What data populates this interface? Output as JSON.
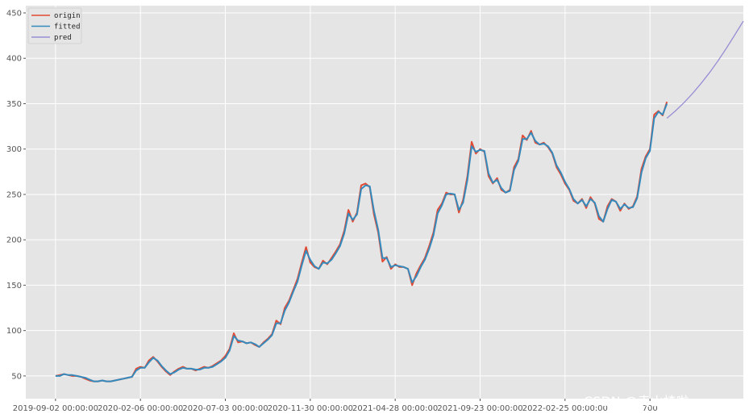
{
  "watermark": "CSDN @卖山楂啦prss",
  "colors": {
    "origin": "#e24a33",
    "fitted": "#348abd",
    "pred": "#988ed5",
    "background": "#e5e5e5",
    "grid": "#ffffff"
  },
  "chart_data": {
    "type": "line",
    "title": "",
    "xlabel": "",
    "ylabel": "",
    "grid": true,
    "legend_position": "top-left",
    "xlim": [
      -35,
      810
    ],
    "ylim": [
      25,
      458
    ],
    "x_ticks": [
      {
        "x": 0,
        "label": "2019-09-02 00:00:00"
      },
      {
        "x": 100,
        "label": "2020-02-06 00:00:00"
      },
      {
        "x": 200,
        "label": "2020-07-03 00:00:00"
      },
      {
        "x": 300,
        "label": "2020-11-30 00:00:00"
      },
      {
        "x": 400,
        "label": "2021-04-28 00:00:00"
      },
      {
        "x": 500,
        "label": "2021-09-23 00:00:00"
      },
      {
        "x": 600,
        "label": "2022-02-25 00:00:00"
      },
      {
        "x": 700,
        "label": "700"
      }
    ],
    "y_ticks": [
      50,
      100,
      150,
      200,
      250,
      300,
      350,
      400,
      450
    ],
    "series": [
      {
        "name": "origin",
        "color": "#e24a33",
        "points": [
          [
            0,
            50
          ],
          [
            5,
            51
          ],
          [
            10,
            52
          ],
          [
            15,
            51
          ],
          [
            20,
            50
          ],
          [
            25,
            50
          ],
          [
            30,
            49
          ],
          [
            35,
            47
          ],
          [
            40,
            45
          ],
          [
            45,
            44
          ],
          [
            50,
            44
          ],
          [
            55,
            45
          ],
          [
            60,
            44
          ],
          [
            65,
            44
          ],
          [
            70,
            45
          ],
          [
            75,
            46
          ],
          [
            80,
            47
          ],
          [
            85,
            48
          ],
          [
            90,
            49
          ],
          [
            95,
            58
          ],
          [
            100,
            60
          ],
          [
            105,
            59
          ],
          [
            110,
            67
          ],
          [
            115,
            71
          ],
          [
            120,
            66
          ],
          [
            125,
            60
          ],
          [
            130,
            55
          ],
          [
            135,
            51
          ],
          [
            140,
            55
          ],
          [
            145,
            58
          ],
          [
            150,
            60
          ],
          [
            155,
            58
          ],
          [
            160,
            58
          ],
          [
            165,
            56
          ],
          [
            170,
            58
          ],
          [
            175,
            60
          ],
          [
            180,
            59
          ],
          [
            185,
            61
          ],
          [
            190,
            64
          ],
          [
            195,
            67
          ],
          [
            200,
            72
          ],
          [
            205,
            80
          ],
          [
            210,
            97
          ],
          [
            215,
            87
          ],
          [
            220,
            88
          ],
          [
            225,
            86
          ],
          [
            230,
            87
          ],
          [
            235,
            84
          ],
          [
            240,
            82
          ],
          [
            245,
            87
          ],
          [
            250,
            91
          ],
          [
            255,
            96
          ],
          [
            260,
            111
          ],
          [
            265,
            107
          ],
          [
            270,
            125
          ],
          [
            275,
            133
          ],
          [
            280,
            145
          ],
          [
            285,
            157
          ],
          [
            290,
            175
          ],
          [
            295,
            192
          ],
          [
            300,
            175
          ],
          [
            305,
            170
          ],
          [
            310,
            168
          ],
          [
            315,
            177
          ],
          [
            320,
            173
          ],
          [
            325,
            180
          ],
          [
            330,
            187
          ],
          [
            335,
            195
          ],
          [
            340,
            210
          ],
          [
            345,
            233
          ],
          [
            350,
            220
          ],
          [
            355,
            230
          ],
          [
            360,
            260
          ],
          [
            365,
            262
          ],
          [
            370,
            258
          ],
          [
            375,
            228
          ],
          [
            380,
            208
          ],
          [
            385,
            176
          ],
          [
            390,
            181
          ],
          [
            395,
            168
          ],
          [
            400,
            173
          ],
          [
            405,
            170
          ],
          [
            410,
            170
          ],
          [
            415,
            168
          ],
          [
            420,
            150
          ],
          [
            425,
            163
          ],
          [
            430,
            172
          ],
          [
            435,
            180
          ],
          [
            440,
            193
          ],
          [
            445,
            208
          ],
          [
            450,
            233
          ],
          [
            455,
            240
          ],
          [
            460,
            252
          ],
          [
            465,
            250
          ],
          [
            470,
            250
          ],
          [
            475,
            230
          ],
          [
            480,
            244
          ],
          [
            485,
            270
          ],
          [
            490,
            308
          ],
          [
            495,
            295
          ],
          [
            500,
            300
          ],
          [
            505,
            297
          ],
          [
            510,
            270
          ],
          [
            515,
            262
          ],
          [
            520,
            268
          ],
          [
            525,
            255
          ],
          [
            530,
            252
          ],
          [
            535,
            255
          ],
          [
            540,
            280
          ],
          [
            545,
            289
          ],
          [
            550,
            315
          ],
          [
            555,
            310
          ],
          [
            560,
            320
          ],
          [
            565,
            307
          ],
          [
            570,
            305
          ],
          [
            575,
            307
          ],
          [
            580,
            302
          ],
          [
            585,
            295
          ],
          [
            590,
            280
          ],
          [
            595,
            272
          ],
          [
            600,
            262
          ],
          [
            605,
            255
          ],
          [
            610,
            243
          ],
          [
            615,
            240
          ],
          [
            620,
            245
          ],
          [
            625,
            235
          ],
          [
            630,
            247
          ],
          [
            635,
            240
          ],
          [
            640,
            223
          ],
          [
            645,
            220
          ],
          [
            650,
            237
          ],
          [
            655,
            245
          ],
          [
            660,
            242
          ],
          [
            665,
            232
          ],
          [
            670,
            240
          ],
          [
            675,
            234
          ],
          [
            680,
            237
          ],
          [
            685,
            248
          ],
          [
            690,
            278
          ],
          [
            695,
            292
          ],
          [
            700,
            300
          ],
          [
            705,
            338
          ],
          [
            710,
            342
          ],
          [
            715,
            337
          ],
          [
            720,
            352
          ]
        ]
      },
      {
        "name": "fitted",
        "color": "#348abd",
        "points": [
          [
            0,
            50
          ],
          [
            5,
            50
          ],
          [
            10,
            52
          ],
          [
            15,
            51
          ],
          [
            20,
            51
          ],
          [
            25,
            50
          ],
          [
            30,
            49
          ],
          [
            35,
            48
          ],
          [
            40,
            46
          ],
          [
            45,
            44
          ],
          [
            50,
            44
          ],
          [
            55,
            45
          ],
          [
            60,
            44
          ],
          [
            65,
            44
          ],
          [
            70,
            45
          ],
          [
            75,
            46
          ],
          [
            80,
            47
          ],
          [
            85,
            48
          ],
          [
            90,
            49
          ],
          [
            95,
            56
          ],
          [
            100,
            59
          ],
          [
            105,
            59
          ],
          [
            110,
            65
          ],
          [
            115,
            70
          ],
          [
            120,
            67
          ],
          [
            125,
            61
          ],
          [
            130,
            56
          ],
          [
            135,
            52
          ],
          [
            140,
            54
          ],
          [
            145,
            57
          ],
          [
            150,
            59
          ],
          [
            155,
            58
          ],
          [
            160,
            58
          ],
          [
            165,
            57
          ],
          [
            170,
            57
          ],
          [
            175,
            59
          ],
          [
            180,
            59
          ],
          [
            185,
            60
          ],
          [
            190,
            63
          ],
          [
            195,
            66
          ],
          [
            200,
            70
          ],
          [
            205,
            78
          ],
          [
            210,
            94
          ],
          [
            215,
            89
          ],
          [
            220,
            88
          ],
          [
            225,
            86
          ],
          [
            230,
            87
          ],
          [
            235,
            85
          ],
          [
            240,
            82
          ],
          [
            245,
            86
          ],
          [
            250,
            90
          ],
          [
            255,
            95
          ],
          [
            260,
            108
          ],
          [
            265,
            108
          ],
          [
            270,
            122
          ],
          [
            275,
            131
          ],
          [
            280,
            143
          ],
          [
            285,
            154
          ],
          [
            290,
            172
          ],
          [
            295,
            188
          ],
          [
            300,
            178
          ],
          [
            305,
            171
          ],
          [
            310,
            168
          ],
          [
            315,
            175
          ],
          [
            320,
            174
          ],
          [
            325,
            178
          ],
          [
            330,
            185
          ],
          [
            335,
            193
          ],
          [
            340,
            207
          ],
          [
            345,
            229
          ],
          [
            350,
            222
          ],
          [
            355,
            228
          ],
          [
            360,
            256
          ],
          [
            365,
            260
          ],
          [
            370,
            259
          ],
          [
            375,
            232
          ],
          [
            380,
            211
          ],
          [
            385,
            180
          ],
          [
            390,
            180
          ],
          [
            395,
            170
          ],
          [
            400,
            172
          ],
          [
            405,
            171
          ],
          [
            410,
            170
          ],
          [
            415,
            168
          ],
          [
            420,
            153
          ],
          [
            425,
            160
          ],
          [
            430,
            170
          ],
          [
            435,
            178
          ],
          [
            440,
            190
          ],
          [
            445,
            205
          ],
          [
            450,
            229
          ],
          [
            455,
            238
          ],
          [
            460,
            250
          ],
          [
            465,
            251
          ],
          [
            470,
            250
          ],
          [
            475,
            233
          ],
          [
            480,
            241
          ],
          [
            485,
            266
          ],
          [
            490,
            303
          ],
          [
            495,
            297
          ],
          [
            500,
            299
          ],
          [
            505,
            298
          ],
          [
            510,
            273
          ],
          [
            515,
            263
          ],
          [
            520,
            266
          ],
          [
            525,
            257
          ],
          [
            530,
            252
          ],
          [
            535,
            254
          ],
          [
            540,
            277
          ],
          [
            545,
            287
          ],
          [
            550,
            311
          ],
          [
            555,
            311
          ],
          [
            560,
            318
          ],
          [
            565,
            309
          ],
          [
            570,
            305
          ],
          [
            575,
            306
          ],
          [
            580,
            303
          ],
          [
            585,
            296
          ],
          [
            590,
            282
          ],
          [
            595,
            274
          ],
          [
            600,
            264
          ],
          [
            605,
            256
          ],
          [
            610,
            245
          ],
          [
            615,
            240
          ],
          [
            620,
            244
          ],
          [
            625,
            237
          ],
          [
            630,
            245
          ],
          [
            635,
            241
          ],
          [
            640,
            226
          ],
          [
            645,
            220
          ],
          [
            650,
            234
          ],
          [
            655,
            244
          ],
          [
            660,
            242
          ],
          [
            665,
            234
          ],
          [
            670,
            239
          ],
          [
            675,
            235
          ],
          [
            680,
            236
          ],
          [
            685,
            246
          ],
          [
            690,
            274
          ],
          [
            695,
            290
          ],
          [
            700,
            298
          ],
          [
            705,
            334
          ],
          [
            710,
            341
          ],
          [
            715,
            338
          ],
          [
            720,
            350
          ]
        ]
      },
      {
        "name": "pred",
        "color": "#988ed5",
        "points": [
          [
            720,
            334
          ],
          [
            730,
            342
          ],
          [
            740,
            351
          ],
          [
            750,
            361
          ],
          [
            760,
            372
          ],
          [
            770,
            384
          ],
          [
            780,
            397
          ],
          [
            790,
            411
          ],
          [
            800,
            426
          ],
          [
            810,
            441
          ]
        ]
      }
    ]
  }
}
